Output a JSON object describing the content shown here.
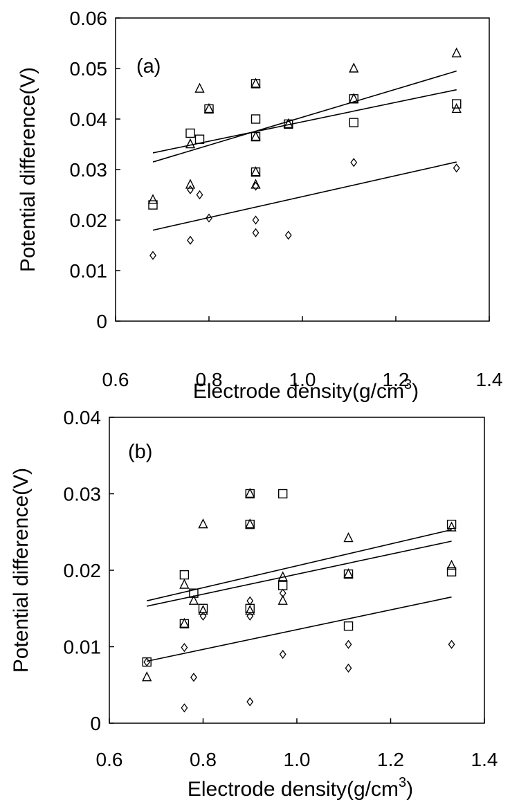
{
  "chart_data": [
    {
      "type": "scatter",
      "panel_label": "(a)",
      "xlabel": "Electrode density(g/cm",
      "xlabel_sup": "3",
      "xlabel_close": ")",
      "ylabel": "Potential difference(V)",
      "xlim": [
        0.6,
        1.4
      ],
      "ylim": [
        0,
        0.06
      ],
      "xticks": [
        0.6,
        0.8,
        1.0,
        1.2,
        1.4
      ],
      "xtick_labels": [
        "0.6",
        "0.8",
        "1.0",
        "1.2",
        "1.4"
      ],
      "yticks": [
        0,
        0.01,
        0.02,
        0.03,
        0.04,
        0.05,
        0.06
      ],
      "ytick_labels": [
        "0",
        "0.01",
        "0.02",
        "0.03",
        "0.04",
        "0.05",
        "0.06"
      ],
      "grid": false,
      "series": [
        {
          "marker": "triangle",
          "points": [
            [
              0.68,
              0.024
            ],
            [
              0.76,
              0.027
            ],
            [
              0.76,
              0.035
            ],
            [
              0.78,
              0.046
            ],
            [
              0.8,
              0.042
            ],
            [
              0.9,
              0.047
            ],
            [
              0.9,
              0.0365
            ],
            [
              0.9,
              0.0295
            ],
            [
              0.9,
              0.027
            ],
            [
              0.97,
              0.039
            ],
            [
              1.11,
              0.05
            ],
            [
              1.11,
              0.044
            ],
            [
              1.33,
              0.053
            ],
            [
              1.33,
              0.042
            ]
          ],
          "trend": [
            [
              0.68,
              0.0315
            ],
            [
              1.33,
              0.0495
            ]
          ]
        },
        {
          "marker": "square",
          "points": [
            [
              0.68,
              0.023
            ],
            [
              0.76,
              0.0372
            ],
            [
              0.78,
              0.036
            ],
            [
              0.8,
              0.042
            ],
            [
              0.9,
              0.047
            ],
            [
              0.9,
              0.04
            ],
            [
              0.9,
              0.0365
            ],
            [
              0.9,
              0.0295
            ],
            [
              0.97,
              0.039
            ],
            [
              1.11,
              0.044
            ],
            [
              1.11,
              0.0393
            ],
            [
              1.33,
              0.043
            ]
          ],
          "trend": [
            [
              0.68,
              0.0333
            ],
            [
              1.33,
              0.0458
            ]
          ]
        },
        {
          "marker": "diamond",
          "points": [
            [
              0.68,
              0.013
            ],
            [
              0.76,
              0.016
            ],
            [
              0.76,
              0.026
            ],
            [
              0.78,
              0.025
            ],
            [
              0.8,
              0.0204
            ],
            [
              0.9,
              0.0175
            ],
            [
              0.9,
              0.02
            ],
            [
              0.9,
              0.0267
            ],
            [
              0.97,
              0.017
            ],
            [
              1.11,
              0.0314
            ],
            [
              1.33,
              0.0303
            ]
          ],
          "trend": [
            [
              0.68,
              0.018
            ],
            [
              1.33,
              0.0315
            ]
          ]
        }
      ]
    },
    {
      "type": "scatter",
      "panel_label": "(b)",
      "xlabel": "Electrode density(g/cm",
      "xlabel_sup": "3",
      "xlabel_close": ")",
      "ylabel": "Potential difference(V)",
      "xlim": [
        0.6,
        1.4
      ],
      "ylim": [
        0,
        0.04
      ],
      "xticks": [
        0.6,
        0.8,
        1.0,
        1.2,
        1.4
      ],
      "xtick_labels": [
        "0.6",
        "0.8",
        "1.0",
        "1.2",
        "1.4"
      ],
      "yticks": [
        0,
        0.01,
        0.02,
        0.03,
        0.04
      ],
      "ytick_labels": [
        "0",
        "0.01",
        "0.02",
        "0.03",
        "0.04"
      ],
      "grid": false,
      "series": [
        {
          "marker": "triangle",
          "points": [
            [
              0.68,
              0.006
            ],
            [
              0.76,
              0.0181
            ],
            [
              0.76,
              0.013
            ],
            [
              0.78,
              0.016
            ],
            [
              0.8,
              0.026
            ],
            [
              0.8,
              0.0147
            ],
            [
              0.9,
              0.03
            ],
            [
              0.9,
              0.026
            ],
            [
              0.9,
              0.0147
            ],
            [
              0.97,
              0.0191
            ],
            [
              0.97,
              0.016
            ],
            [
              1.11,
              0.0242
            ],
            [
              1.11,
              0.0195
            ],
            [
              1.33,
              0.0256
            ],
            [
              1.33,
              0.0206
            ]
          ],
          "trend": [
            [
              0.68,
              0.0153
            ],
            [
              1.33,
              0.0238
            ]
          ]
        },
        {
          "marker": "square",
          "points": [
            [
              0.68,
              0.008
            ],
            [
              0.76,
              0.0194
            ],
            [
              0.76,
              0.013
            ],
            [
              0.78,
              0.017
            ],
            [
              0.8,
              0.015
            ],
            [
              0.9,
              0.03
            ],
            [
              0.9,
              0.026
            ],
            [
              0.9,
              0.015
            ],
            [
              0.97,
              0.03
            ],
            [
              0.97,
              0.018
            ],
            [
              1.11,
              0.0195
            ],
            [
              1.11,
              0.0127
            ],
            [
              1.33,
              0.026
            ],
            [
              1.33,
              0.0198
            ]
          ],
          "trend": [
            [
              0.68,
              0.016
            ],
            [
              1.33,
              0.0253
            ]
          ]
        },
        {
          "marker": "diamond",
          "points": [
            [
              0.68,
              0.008
            ],
            [
              0.76,
              0.0099
            ],
            [
              0.76,
              0.002
            ],
            [
              0.78,
              0.006
            ],
            [
              0.8,
              0.014
            ],
            [
              0.9,
              0.016
            ],
            [
              0.9,
              0.014
            ],
            [
              0.9,
              0.0028
            ],
            [
              0.97,
              0.017
            ],
            [
              0.97,
              0.009
            ],
            [
              1.11,
              0.0103
            ],
            [
              1.11,
              0.0072
            ],
            [
              1.33,
              0.0103
            ]
          ],
          "trend": [
            [
              0.68,
              0.0081
            ],
            [
              1.33,
              0.0165
            ]
          ]
        }
      ]
    }
  ]
}
